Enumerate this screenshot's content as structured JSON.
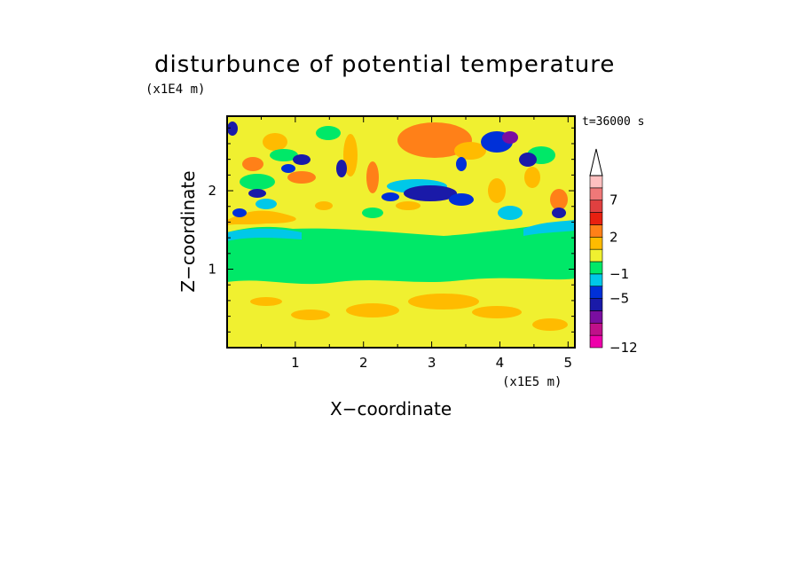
{
  "chart_data": {
    "type": "heatmap",
    "title": "disturbunce of potential temperature",
    "xlabel": "X−coordinate",
    "ylabel": "Z−coordinate",
    "x_unit": "(x1E5 m)",
    "y_unit": "(x1E4 m)",
    "annotation": "t=36000 s",
    "xlim": [
      0.0,
      5.1
    ],
    "ylim": [
      0.0,
      2.95
    ],
    "x_ticks": [
      1,
      2,
      3,
      4,
      5
    ],
    "y_ticks": [
      1,
      2
    ],
    "colorbar": {
      "levels": [
        -12,
        -11,
        -9,
        -7,
        -5,
        -3,
        -1,
        0,
        1,
        2,
        3,
        5,
        7,
        9,
        11
      ],
      "labeled_levels": [
        -12,
        -5,
        -1,
        2,
        7
      ],
      "colors": [
        "#ee00aa",
        "#c0108a",
        "#7a0ea0",
        "#1a1aa8",
        "#0030d8",
        "#00c8e8",
        "#00e868",
        "#f0f030",
        "#ffbb00",
        "#ff8018",
        "#e82010",
        "#e04040",
        "#f07878",
        "#ffc0c0"
      ],
      "extend": "max"
    },
    "field_description_levels": {
      "z_0_to_0.9": "0 to 1 (yellow) with patches of 1 to 2",
      "z_0.9_to_1.5": "-1 to 0 (green)",
      "z_above_1.5": "wave pattern -9 to 9"
    }
  },
  "colors": {
    "yellow": "#f0f030",
    "orange": "#ffbb00",
    "dark_orange": "#ff8018",
    "green": "#00e868",
    "cyan": "#00c8e8",
    "blue": "#0030d8",
    "navy": "#1a1aa8",
    "purple": "#7a0ea0"
  }
}
